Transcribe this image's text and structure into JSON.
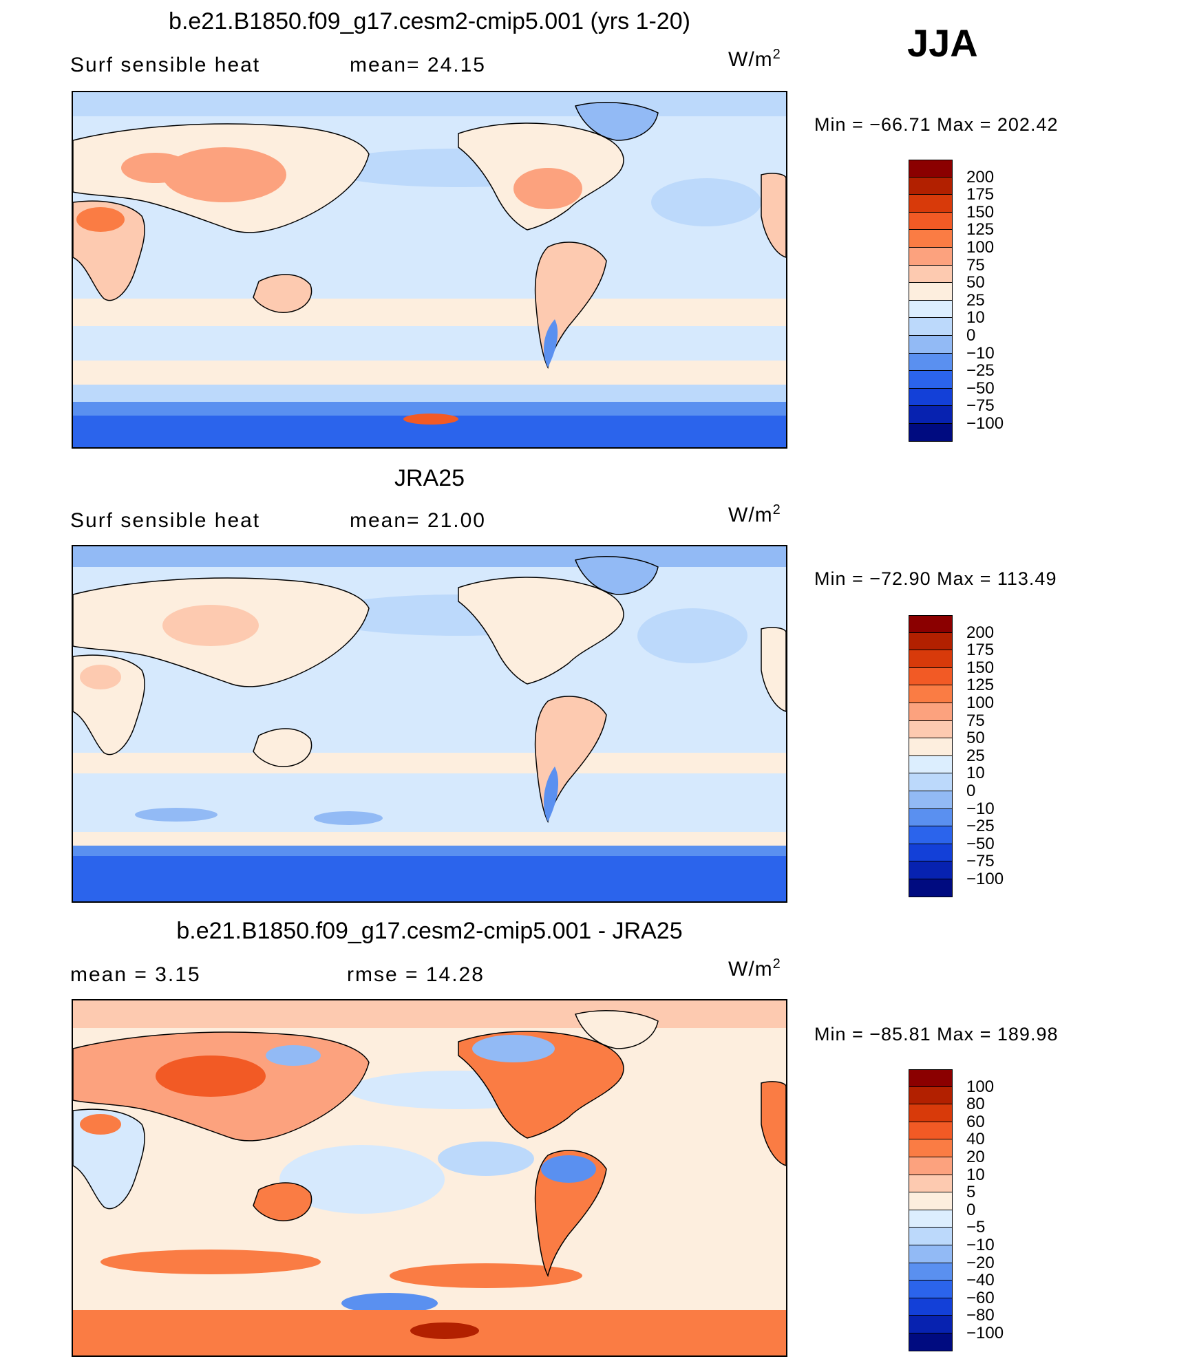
{
  "season": "JJA",
  "units_base": "W/m",
  "units_exp": "2",
  "panels": [
    {
      "title": "b.e21.B1850.f09_g17.cesm2-cmip5.001 (yrs 1-20)",
      "left_label": "Surf  sensible  heat",
      "stat_label": "mean=   24.15",
      "min_max": "Min  =  −66.71  Max  =  202.42",
      "colorbar_labels": [
        "200",
        "175",
        "150",
        "125",
        "100",
        "75",
        "50",
        "25",
        "10",
        "0",
        "−10",
        "−25",
        "−50",
        "−75",
        "−100"
      ],
      "colors": [
        "#8b0000",
        "#b22000",
        "#d83a0a",
        "#f25a25",
        "#fa7c44",
        "#fca27e",
        "#fdcab0",
        "#fdeede",
        "#dceefe",
        "#bcd9fb",
        "#92baf5",
        "#5a90f0",
        "#2b64ec",
        "#1340d8",
        "#0722b0",
        "#000b80"
      ]
    },
    {
      "title": "JRA25",
      "left_label": "Surf  sensible  heat",
      "stat_label": "mean=   21.00",
      "min_max": "Min  =  −72.90  Max  =  113.49",
      "colorbar_labels": [
        "200",
        "175",
        "150",
        "125",
        "100",
        "75",
        "50",
        "25",
        "10",
        "0",
        "−10",
        "−25",
        "−50",
        "−75",
        "−100"
      ],
      "colors": [
        "#8b0000",
        "#b22000",
        "#d83a0a",
        "#f25a25",
        "#fa7c44",
        "#fca27e",
        "#fdcab0",
        "#fdeede",
        "#dceefe",
        "#bcd9fb",
        "#92baf5",
        "#5a90f0",
        "#2b64ec",
        "#1340d8",
        "#0722b0",
        "#000b80"
      ]
    },
    {
      "title": "b.e21.B1850.f09_g17.cesm2-cmip5.001 - JRA25",
      "left_label": "mean  =     3.15",
      "stat_label": "rmse  =    14.28",
      "min_max": "Min  =  −85.81  Max  =  189.98",
      "colorbar_labels": [
        "100",
        "80",
        "60",
        "40",
        "20",
        "10",
        "5",
        "0",
        "−5",
        "−10",
        "−20",
        "−40",
        "−60",
        "−80",
        "−100"
      ],
      "colors": [
        "#8b0000",
        "#b22000",
        "#d83a0a",
        "#f25a25",
        "#fa7c44",
        "#fca27e",
        "#fdcab0",
        "#fdeede",
        "#dceefe",
        "#bcd9fb",
        "#92baf5",
        "#5a90f0",
        "#2b64ec",
        "#1340d8",
        "#0722b0",
        "#000b80"
      ]
    }
  ]
}
